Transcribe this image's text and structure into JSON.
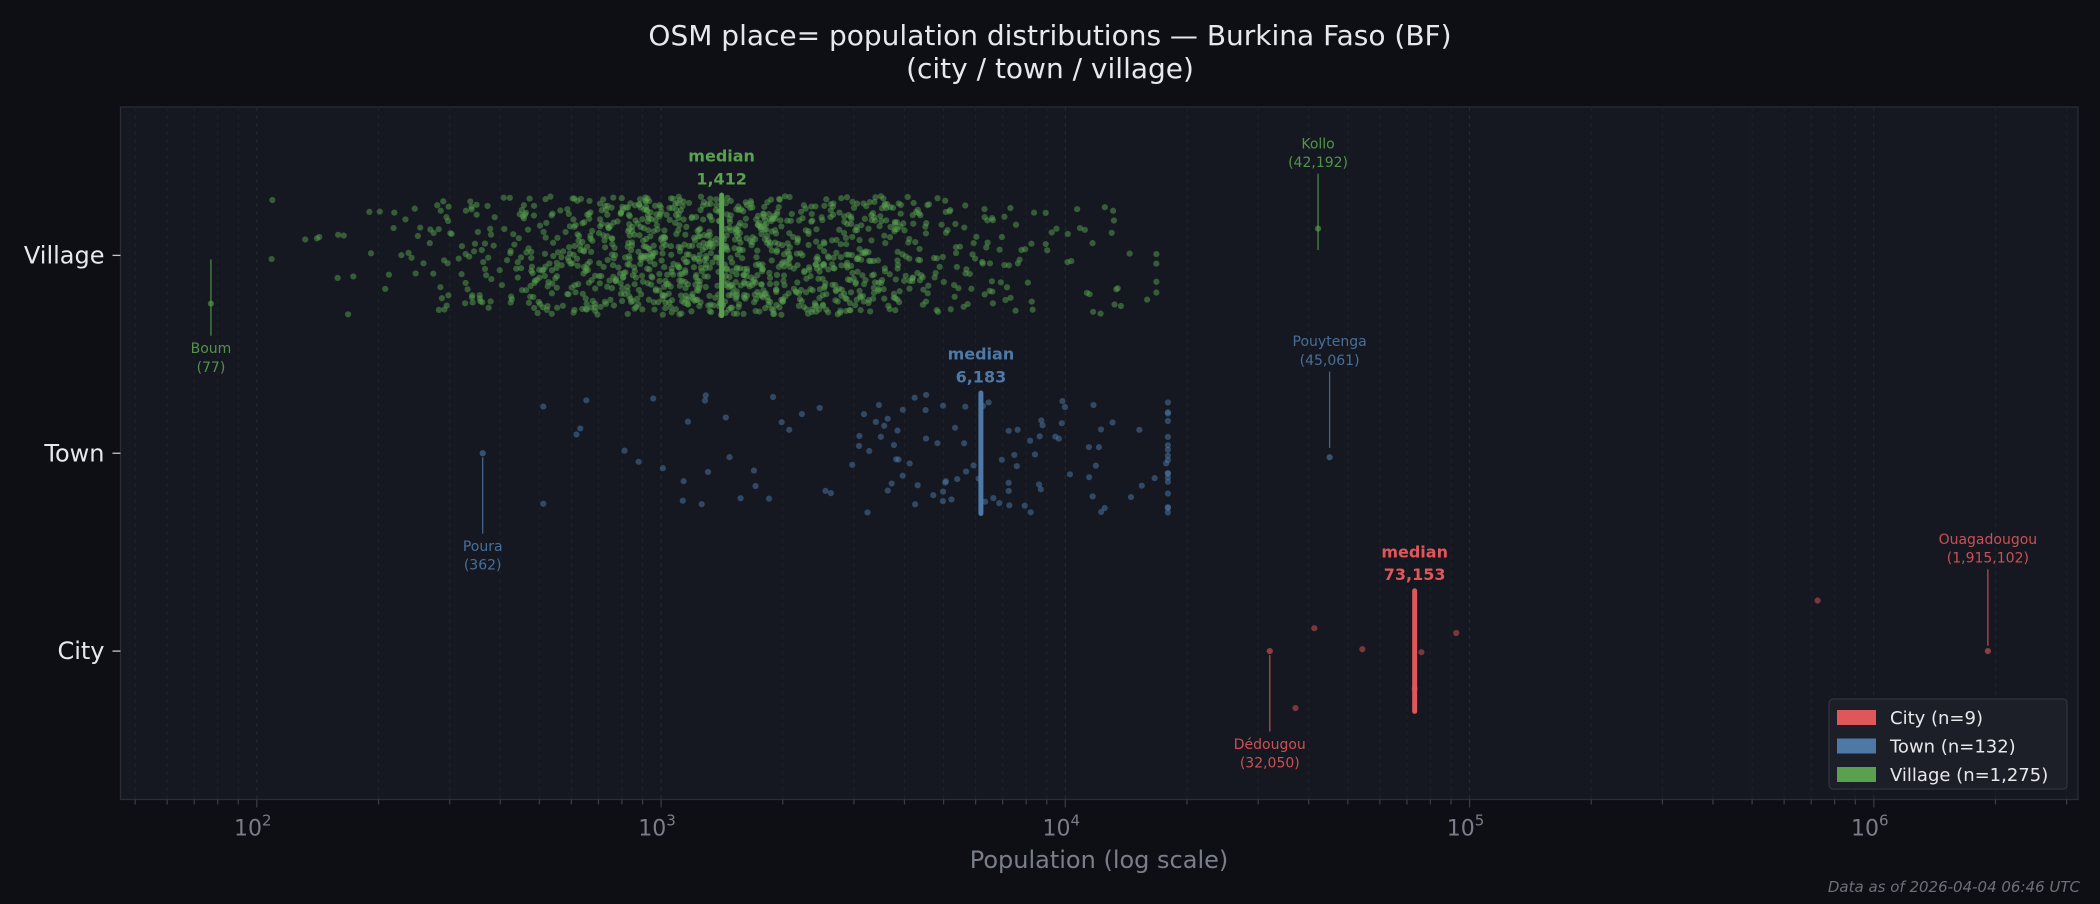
{
  "chart_data": {
    "type": "scatter",
    "title": "OSM place= population distributions — Burkina Faso (BF)",
    "subtitle": "(city / town / village)",
    "xlabel": "Population (log scale)",
    "xscale": "log",
    "xlim": [
      46,
      3200000
    ],
    "x_ticks": [
      100,
      1000,
      10000,
      100000,
      1000000
    ],
    "x_tick_labels": [
      [
        "10",
        "2"
      ],
      [
        "10",
        "3"
      ],
      [
        "10",
        "4"
      ],
      [
        "10",
        "5"
      ],
      [
        "10",
        "6"
      ]
    ],
    "categories": [
      "City",
      "Town",
      "Village"
    ],
    "grid": true,
    "legend_position": "bottom-right",
    "series": [
      {
        "name": "City",
        "legend": "City  (n=9)",
        "color": "#e05759",
        "n": 9,
        "median": 73153,
        "median_label": "median",
        "median_text": "73,153",
        "values": [
          32050,
          37100,
          41300,
          54300,
          73153,
          76000,
          92700,
          726000,
          1915102
        ],
        "min": {
          "name": "Dédougou",
          "value": 32050,
          "label": "(32,050)"
        },
        "max": {
          "name": "Ouagadougou",
          "value": 1915102,
          "label": "(1,915,102)"
        }
      },
      {
        "name": "Town",
        "legend": "Town  (n=132)",
        "color": "#4e79a7",
        "n": 132,
        "median": 6183,
        "median_label": "median",
        "median_text": "6,183",
        "min": {
          "name": "Poura",
          "value": 362,
          "label": "(362)"
        },
        "max": {
          "name": "Pouytenga",
          "value": 45061,
          "label": "(45,061)"
        }
      },
      {
        "name": "Village",
        "legend": "Village  (n=1,275)",
        "color": "#59a14f",
        "n": 1275,
        "median": 1412,
        "median_label": "median",
        "median_text": "1,412",
        "min": {
          "name": "Boum",
          "value": 77,
          "label": "(77)"
        },
        "max": {
          "name": "Kollo",
          "value": 42192,
          "label": "(42,192)"
        }
      }
    ]
  },
  "footer": "Data as of 2026-04-04 06:46 UTC"
}
